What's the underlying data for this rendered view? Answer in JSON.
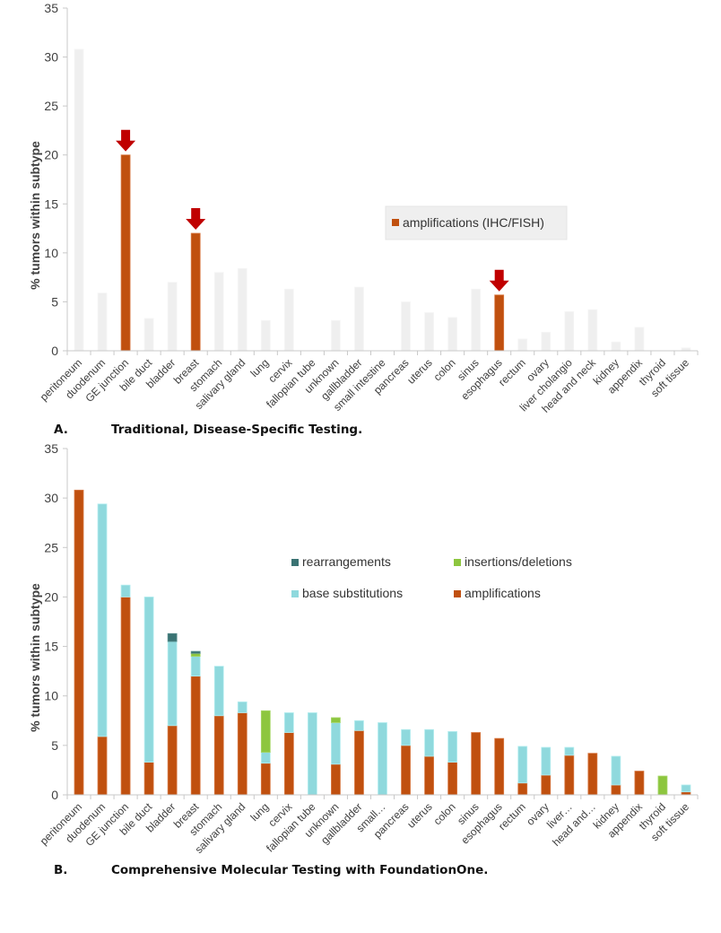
{
  "chart_data": [
    {
      "type": "bar",
      "title": "",
      "caption_letter": "A.",
      "caption_text": "Traditional, Disease-Specific Testing.",
      "xlabel": "",
      "ylabel": "% tumors within subtype",
      "ylim": [
        0,
        35
      ],
      "yticks": [
        "0",
        "5",
        "10",
        "15",
        "20",
        "25",
        "30",
        "35"
      ],
      "grid": false,
      "legend_position": "center-right",
      "legend": [
        {
          "name": "amplifications (IHC/FISH)",
          "color": "#c0500f"
        }
      ],
      "categories": [
        "peritoneum",
        "duodenum",
        "GE junction",
        "bile duct",
        "bladder",
        "breast",
        "stomach",
        "salivary gland",
        "lung",
        "cervix",
        "fallopian tube",
        "unknown",
        "gallbladder",
        "small intestine",
        "pancreas",
        "uterus",
        "colon",
        "sinus",
        "esophagus",
        "rectum",
        "ovary",
        "liver cholangio",
        "head and neck",
        "kidney",
        "appendix",
        "thyroid",
        "soft tissue"
      ],
      "values": [
        30.8,
        5.9,
        20.0,
        3.3,
        7.0,
        12.0,
        8.0,
        8.4,
        3.1,
        6.3,
        0,
        3.1,
        6.5,
        0,
        5.0,
        3.9,
        3.4,
        6.3,
        5.7,
        1.2,
        1.9,
        4.0,
        4.2,
        0.9,
        2.4,
        0,
        0.3
      ],
      "highlighted": [
        "GE junction",
        "breast",
        "esophagus"
      ],
      "highlight_color": "#c0500f",
      "base_color": "#efefef",
      "annotations": [
        {
          "type": "arrow",
          "target": "GE junction",
          "color": "#c00000"
        },
        {
          "type": "arrow",
          "target": "breast",
          "color": "#c00000"
        },
        {
          "type": "arrow",
          "target": "esophagus",
          "color": "#c00000"
        }
      ]
    },
    {
      "type": "bar",
      "stacked": true,
      "title": "",
      "caption_letter": "B.",
      "caption_text": "Comprehensive Molecular Testing with FoundationOne.",
      "xlabel": "",
      "ylabel": "% tumors within subtype",
      "ylim": [
        0,
        35
      ],
      "yticks": [
        "0",
        "5",
        "10",
        "15",
        "20",
        "25",
        "30",
        "35"
      ],
      "grid": false,
      "legend_position": "center-right",
      "categories": [
        "peritoneum",
        "duodenum",
        "GE junction",
        "bile duct",
        "bladder",
        "breast",
        "stomach",
        "salivary gland",
        "lung",
        "cervix",
        "fallopian tube",
        "unknown",
        "gallbladder",
        "small…",
        "pancreas",
        "uterus",
        "colon",
        "sinus",
        "esophagus",
        "rectum",
        "ovary",
        "liver…",
        "head and…",
        "kidney",
        "appendix",
        "thyroid",
        "soft tissue"
      ],
      "series": [
        {
          "name": "amplifications",
          "color": "#c0500f",
          "values": [
            30.8,
            5.9,
            20.0,
            3.3,
            7.0,
            12.0,
            8.0,
            8.3,
            3.2,
            6.3,
            0,
            3.1,
            6.5,
            0,
            5.0,
            3.9,
            3.3,
            6.3,
            5.7,
            1.2,
            2.0,
            4.0,
            4.2,
            1.0,
            2.4,
            0,
            0.3
          ]
        },
        {
          "name": "base substitutions",
          "color": "#8fd9dd",
          "values": [
            0,
            23.5,
            1.2,
            16.7,
            8.5,
            2.0,
            5.0,
            1.1,
            1.1,
            2.0,
            8.3,
            4.2,
            1.0,
            7.3,
            1.6,
            2.7,
            3.1,
            0,
            0,
            3.7,
            2.8,
            0.8,
            0,
            2.9,
            0,
            0,
            0.7
          ]
        },
        {
          "name": "insertions/deletions",
          "color": "#8dc63f",
          "values": [
            0,
            0,
            0,
            0,
            0,
            0.3,
            0,
            0,
            4.2,
            0,
            0,
            0.5,
            0,
            0,
            0,
            0,
            0,
            0,
            0,
            0,
            0,
            0,
            0,
            0,
            0,
            1.9,
            0
          ]
        },
        {
          "name": "rearrangements",
          "color": "#3a7373",
          "values": [
            0,
            0,
            0,
            0,
            0.8,
            0.2,
            0,
            0,
            0,
            0,
            0,
            0,
            0,
            0,
            0,
            0,
            0,
            0,
            0,
            0,
            0,
            0,
            0,
            0,
            0,
            0,
            0
          ]
        }
      ],
      "legend": [
        {
          "name": "rearrangements",
          "color": "#3a7373"
        },
        {
          "name": "insertions/deletions",
          "color": "#8dc63f"
        },
        {
          "name": "base substitutions",
          "color": "#8fd9dd"
        },
        {
          "name": "amplifications",
          "color": "#c0500f"
        }
      ]
    }
  ]
}
